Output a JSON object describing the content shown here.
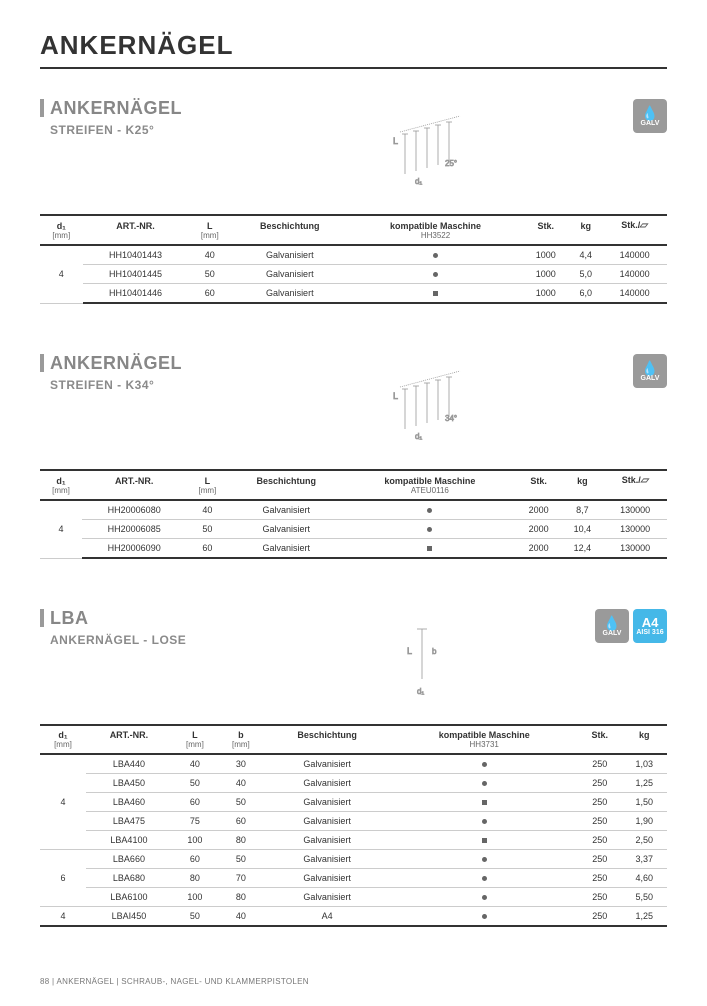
{
  "page_title": "ANKERNÄGEL",
  "footer": "88  |  ANKERNÄGEL  |  SCHRAUB-, NAGEL- UND KLAMMERPISTOLEN",
  "colors": {
    "heading_gray": "#878787",
    "accent_bar": "#9a9a9a",
    "badge_galv": "#9a9a9a",
    "badge_a4": "#45b8e8",
    "rule_dark": "#333333",
    "rule_light": "#cccccc"
  },
  "badges": {
    "galv": "GALV",
    "a4_big": "A4",
    "a4_small": "AISI 316"
  },
  "sections": [
    {
      "title": "ANKERNÄGEL",
      "subtitle": "STREIFEN - K25°",
      "badges": [
        "galv"
      ],
      "diagram": {
        "angle": "25°",
        "dims": [
          "L",
          "d₁"
        ]
      },
      "columns": [
        "d₁",
        "ART.-NR.",
        "L",
        "Beschichtung",
        "kompatible Maschine",
        "Stk.",
        "kg",
        "Stk./"
      ],
      "units": [
        "[mm]",
        "",
        "[mm]",
        "",
        "HH3522",
        "",
        "",
        ""
      ],
      "has_pallet_icon": true,
      "d1_groups": [
        {
          "d1": "4",
          "span": 3
        }
      ],
      "rows": [
        {
          "art": "HH10401443",
          "L": "40",
          "besch": "Galvanisiert",
          "mark": "dot",
          "stk": "1000",
          "kg": "4,4",
          "pal": "140000"
        },
        {
          "art": "HH10401445",
          "L": "50",
          "besch": "Galvanisiert",
          "mark": "dot",
          "stk": "1000",
          "kg": "5,0",
          "pal": "140000"
        },
        {
          "art": "HH10401446",
          "L": "60",
          "besch": "Galvanisiert",
          "mark": "square",
          "stk": "1000",
          "kg": "6,0",
          "pal": "140000"
        }
      ]
    },
    {
      "title": "ANKERNÄGEL",
      "subtitle": "STREIFEN - K34°",
      "badges": [
        "galv"
      ],
      "diagram": {
        "angle": "34°",
        "dims": [
          "L",
          "d₁"
        ]
      },
      "columns": [
        "d₁",
        "ART.-NR.",
        "L",
        "Beschichtung",
        "kompatible Maschine",
        "Stk.",
        "kg",
        "Stk./"
      ],
      "units": [
        "[mm]",
        "",
        "[mm]",
        "",
        "ATEU0116",
        "",
        "",
        ""
      ],
      "has_pallet_icon": true,
      "d1_groups": [
        {
          "d1": "4",
          "span": 3
        }
      ],
      "rows": [
        {
          "art": "HH20006080",
          "L": "40",
          "besch": "Galvanisiert",
          "mark": "dot",
          "stk": "2000",
          "kg": "8,7",
          "pal": "130000"
        },
        {
          "art": "HH20006085",
          "L": "50",
          "besch": "Galvanisiert",
          "mark": "dot",
          "stk": "2000",
          "kg": "10,4",
          "pal": "130000"
        },
        {
          "art": "HH20006090",
          "L": "60",
          "besch": "Galvanisiert",
          "mark": "square",
          "stk": "2000",
          "kg": "12,4",
          "pal": "130000"
        }
      ]
    },
    {
      "title": "LBA",
      "subtitle": "ANKERNÄGEL - LOSE",
      "badges": [
        "galv",
        "a4"
      ],
      "diagram": {
        "angle": "",
        "dims": [
          "L",
          "b",
          "d₁"
        ]
      },
      "columns": [
        "d₁",
        "ART.-NR.",
        "L",
        "b",
        "Beschichtung",
        "kompatible Maschine",
        "Stk.",
        "kg"
      ],
      "units": [
        "[mm]",
        "",
        "[mm]",
        "[mm]",
        "",
        "HH3731",
        "",
        ""
      ],
      "has_pallet_icon": false,
      "d1_groups": [
        {
          "d1": "4",
          "span": 5
        },
        {
          "d1": "6",
          "span": 3
        },
        {
          "d1": "4",
          "span": 1
        }
      ],
      "rows": [
        {
          "art": "LBA440",
          "L": "40",
          "b": "30",
          "besch": "Galvanisiert",
          "mark": "dot",
          "stk": "250",
          "kg": "1,03"
        },
        {
          "art": "LBA450",
          "L": "50",
          "b": "40",
          "besch": "Galvanisiert",
          "mark": "dot",
          "stk": "250",
          "kg": "1,25"
        },
        {
          "art": "LBA460",
          "L": "60",
          "b": "50",
          "besch": "Galvanisiert",
          "mark": "square",
          "stk": "250",
          "kg": "1,50"
        },
        {
          "art": "LBA475",
          "L": "75",
          "b": "60",
          "besch": "Galvanisiert",
          "mark": "dot",
          "stk": "250",
          "kg": "1,90"
        },
        {
          "art": "LBA4100",
          "L": "100",
          "b": "80",
          "besch": "Galvanisiert",
          "mark": "square",
          "stk": "250",
          "kg": "2,50"
        },
        {
          "art": "LBA660",
          "L": "60",
          "b": "50",
          "besch": "Galvanisiert",
          "mark": "dot",
          "stk": "250",
          "kg": "3,37"
        },
        {
          "art": "LBA680",
          "L": "80",
          "b": "70",
          "besch": "Galvanisiert",
          "mark": "dot",
          "stk": "250",
          "kg": "4,60"
        },
        {
          "art": "LBA6100",
          "L": "100",
          "b": "80",
          "besch": "Galvanisiert",
          "mark": "dot",
          "stk": "250",
          "kg": "5,50"
        },
        {
          "art": "LBAI450",
          "L": "50",
          "b": "40",
          "besch": "A4",
          "mark": "dot",
          "stk": "250",
          "kg": "1,25"
        }
      ]
    }
  ]
}
